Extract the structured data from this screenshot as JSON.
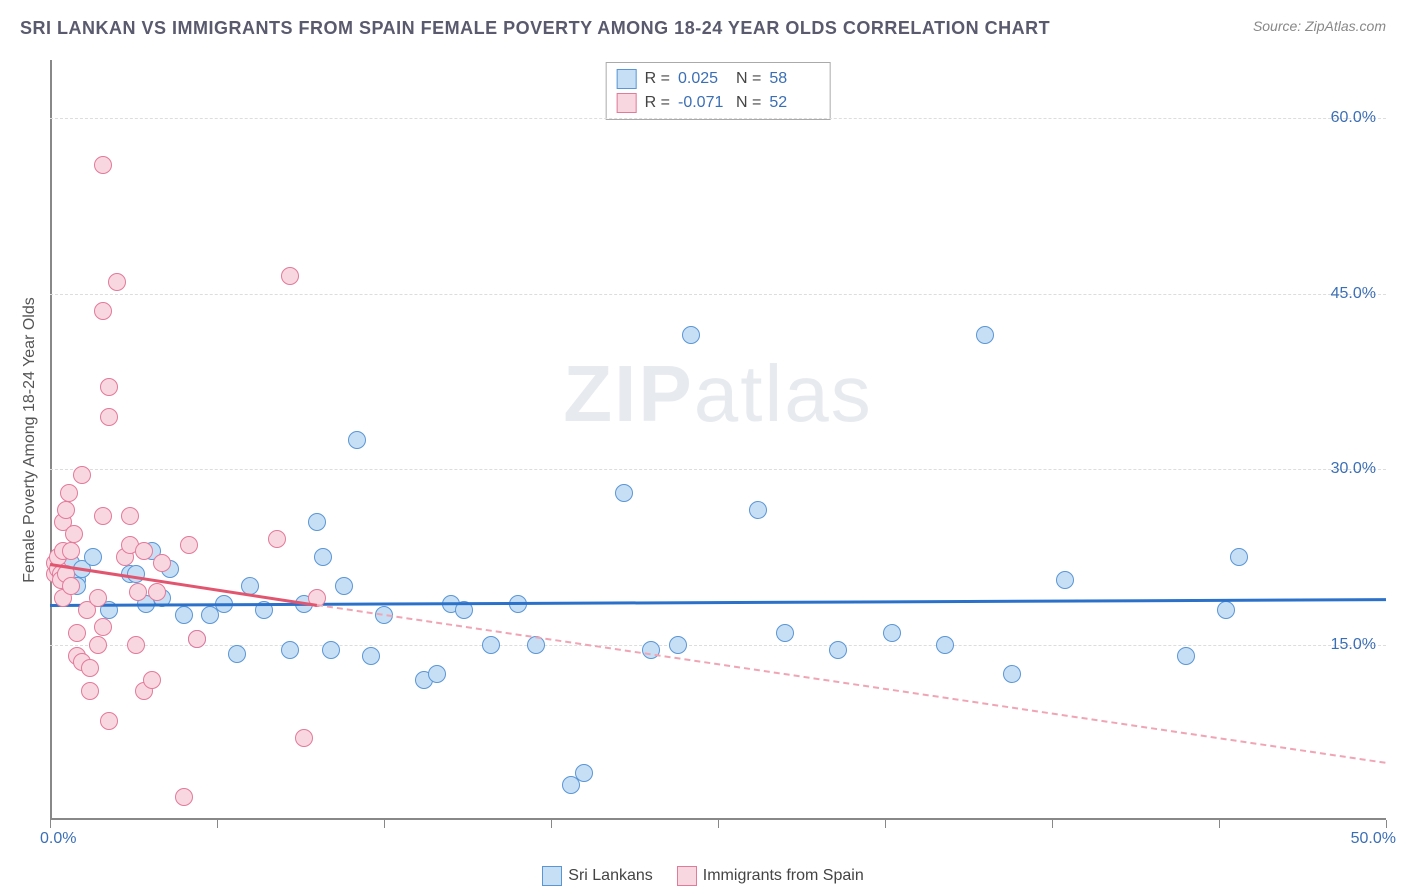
{
  "title": "SRI LANKAN VS IMMIGRANTS FROM SPAIN FEMALE POVERTY AMONG 18-24 YEAR OLDS CORRELATION CHART",
  "source": "Source: ZipAtlas.com",
  "watermark_a": "ZIP",
  "watermark_b": "atlas",
  "chart": {
    "type": "scatter",
    "ylabel": "Female Poverty Among 18-24 Year Olds",
    "xlim": [
      0,
      50
    ],
    "ylim": [
      0,
      65
    ],
    "ytick_labels": [
      "15.0%",
      "30.0%",
      "45.0%",
      "60.0%"
    ],
    "ytick_values": [
      15,
      30,
      45,
      60
    ],
    "xtick_values": [
      0,
      6.25,
      12.5,
      18.75,
      25,
      31.25,
      37.5,
      43.75,
      50
    ],
    "xaxis_labels": {
      "left": "0.0%",
      "right": "50.0%"
    },
    "grid_color": "#dddddd",
    "background_color": "#ffffff",
    "axis_color": "#888888",
    "tick_label_color": "#3b6fb5",
    "marker_radius": 9,
    "marker_stroke_width": 1.5,
    "series": [
      {
        "name": "Sri Lankans",
        "fill": "#c6dff5",
        "stroke": "#5a96d6",
        "r_value": "0.025",
        "n_value": "58",
        "trend": {
          "y_start": 18.5,
          "y_end": 19.0,
          "style": "solid",
          "color": "#2b71c9",
          "width": 3,
          "x_end": 50
        },
        "points": [
          [
            0.5,
            21
          ],
          [
            0.8,
            22
          ],
          [
            1.0,
            20.5
          ],
          [
            1.0,
            20
          ],
          [
            1.2,
            21.5
          ],
          [
            1.6,
            22.5
          ],
          [
            2.2,
            18
          ],
          [
            3.0,
            21
          ],
          [
            3.2,
            21
          ],
          [
            3.6,
            18.5
          ],
          [
            3.8,
            23
          ],
          [
            4.2,
            19
          ],
          [
            4.5,
            21.5
          ],
          [
            5.0,
            17.5
          ],
          [
            5.5,
            15.5
          ],
          [
            6.0,
            17.5
          ],
          [
            6.5,
            18.5
          ],
          [
            7.0,
            14.2
          ],
          [
            7.5,
            20
          ],
          [
            8.0,
            18
          ],
          [
            9.0,
            14.5
          ],
          [
            9.5,
            18.5
          ],
          [
            10.0,
            25.5
          ],
          [
            10.2,
            22.5
          ],
          [
            10.5,
            14.5
          ],
          [
            11.0,
            20
          ],
          [
            11.5,
            32.5
          ],
          [
            12.0,
            14
          ],
          [
            12.5,
            17.5
          ],
          [
            14.0,
            12
          ],
          [
            14.5,
            12.5
          ],
          [
            15.0,
            18.5
          ],
          [
            15.5,
            18
          ],
          [
            16.5,
            15
          ],
          [
            17.5,
            18.5
          ],
          [
            18.2,
            15
          ],
          [
            19.5,
            3
          ],
          [
            20.0,
            4
          ],
          [
            21.5,
            28
          ],
          [
            22.5,
            14.5
          ],
          [
            23.5,
            15
          ],
          [
            24.0,
            41.5
          ],
          [
            26.5,
            26.5
          ],
          [
            27.5,
            16
          ],
          [
            29.5,
            14.5
          ],
          [
            31.5,
            16
          ],
          [
            33.5,
            15
          ],
          [
            35.0,
            41.5
          ],
          [
            36.0,
            12.5
          ],
          [
            38.0,
            20.5
          ],
          [
            42.5,
            14
          ],
          [
            44.0,
            18
          ],
          [
            44.5,
            22.5
          ]
        ]
      },
      {
        "name": "Immigrants from Spain",
        "fill": "#f9d7e0",
        "stroke": "#e27a9a",
        "r_value": "-0.071",
        "n_value": "52",
        "trend": {
          "y_start": 22,
          "y_end": 18.5,
          "style": "solid",
          "color": "#e2556f",
          "width": 3,
          "x_end": 10
        },
        "trend_ext": {
          "y_start": 18.5,
          "y_end": 5,
          "style": "dashed",
          "color": "#f0a5b5",
          "width": 2,
          "x_start": 10,
          "x_end": 50
        },
        "points": [
          [
            0.2,
            21
          ],
          [
            0.2,
            22
          ],
          [
            0.3,
            21.5
          ],
          [
            0.3,
            22.5
          ],
          [
            0.4,
            21
          ],
          [
            0.4,
            20.5
          ],
          [
            0.5,
            23
          ],
          [
            0.5,
            19
          ],
          [
            0.5,
            25.5
          ],
          [
            0.6,
            26.5
          ],
          [
            0.6,
            21
          ],
          [
            0.7,
            28
          ],
          [
            0.8,
            20
          ],
          [
            0.8,
            23
          ],
          [
            0.9,
            24.5
          ],
          [
            1.0,
            16
          ],
          [
            1.0,
            14
          ],
          [
            1.2,
            29.5
          ],
          [
            1.2,
            13.5
          ],
          [
            1.4,
            18
          ],
          [
            1.5,
            11
          ],
          [
            1.5,
            13
          ],
          [
            1.8,
            19
          ],
          [
            1.8,
            15
          ],
          [
            2.0,
            26
          ],
          [
            2.0,
            16.5
          ],
          [
            2.0,
            43.5
          ],
          [
            2.0,
            56
          ],
          [
            2.2,
            37
          ],
          [
            2.2,
            34.5
          ],
          [
            2.2,
            8.5
          ],
          [
            2.5,
            46
          ],
          [
            2.8,
            22.5
          ],
          [
            3.0,
            26
          ],
          [
            3.0,
            23.5
          ],
          [
            3.2,
            15
          ],
          [
            3.3,
            19.5
          ],
          [
            3.5,
            23
          ],
          [
            3.5,
            11
          ],
          [
            3.8,
            12
          ],
          [
            4.0,
            19.5
          ],
          [
            4.2,
            22
          ],
          [
            5.0,
            2
          ],
          [
            5.2,
            23.5
          ],
          [
            5.5,
            15.5
          ],
          [
            8.5,
            24
          ],
          [
            9.0,
            46.5
          ],
          [
            9.5,
            7
          ],
          [
            10.0,
            19
          ]
        ]
      }
    ]
  },
  "stats_labels": {
    "r": "R =",
    "n": "N ="
  },
  "legend_labels": [
    "Sri Lankans",
    "Immigrants from Spain"
  ]
}
